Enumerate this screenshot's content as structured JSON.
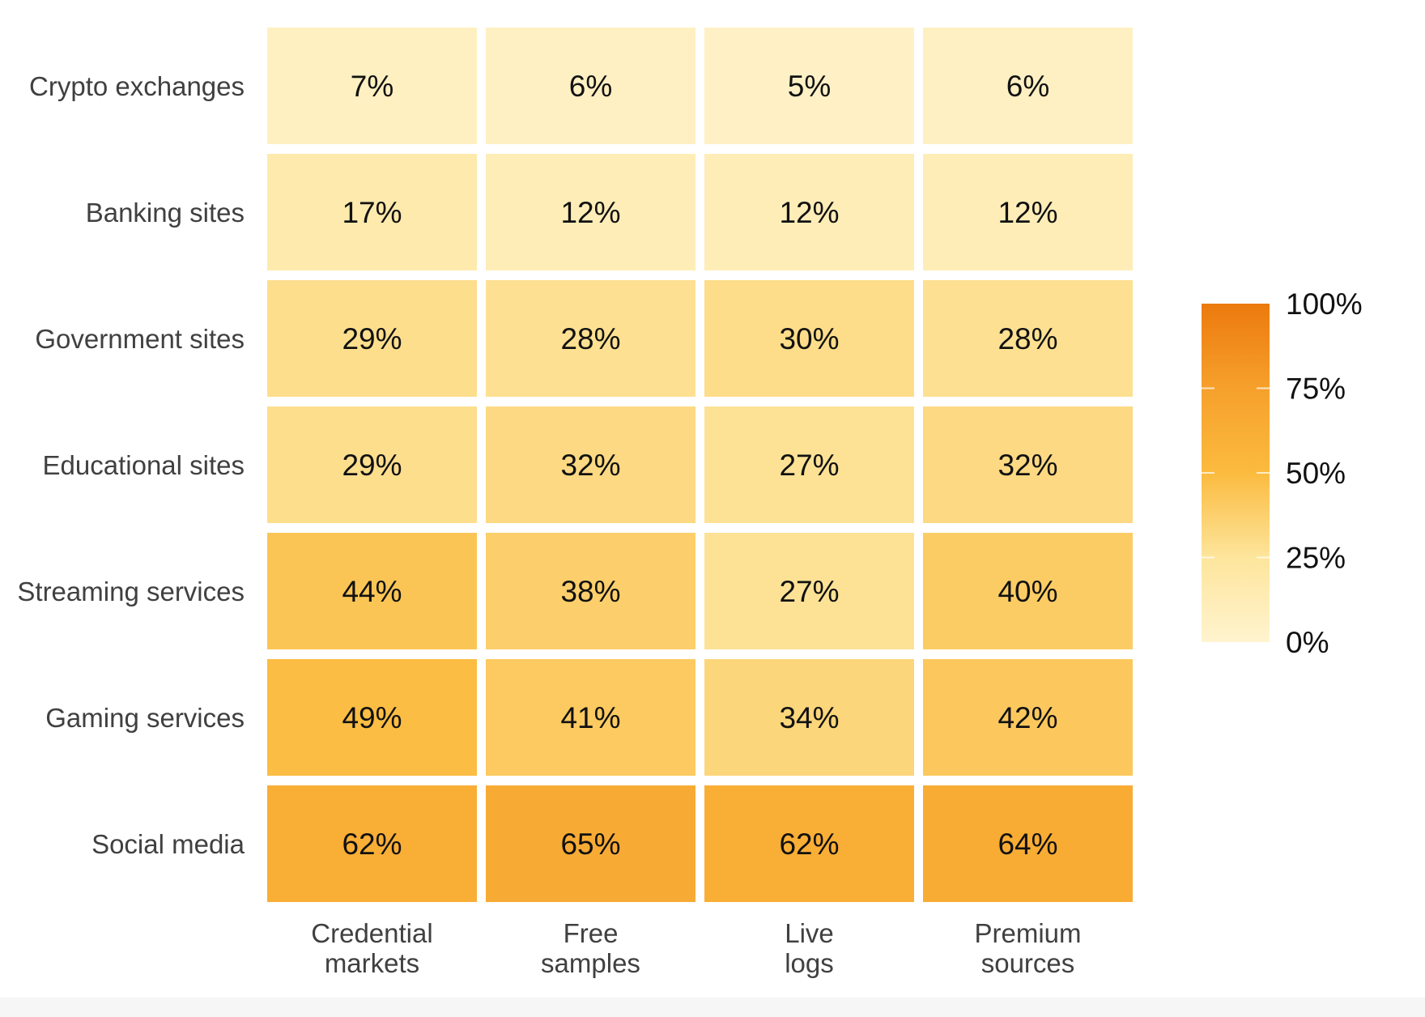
{
  "chart_data": {
    "type": "heatmap",
    "title": "",
    "xlabel": "",
    "ylabel": "",
    "rows": [
      "Crypto exchanges",
      "Banking sites",
      "Government sites",
      "Educational sites",
      "Streaming services",
      "Gaming services",
      "Social media"
    ],
    "columns": [
      [
        "Credential",
        "markets"
      ],
      [
        "Free",
        "samples"
      ],
      [
        "Live",
        "logs"
      ],
      [
        "Premium",
        "sources"
      ]
    ],
    "values": [
      [
        7,
        6,
        5,
        6
      ],
      [
        17,
        12,
        12,
        12
      ],
      [
        29,
        28,
        30,
        28
      ],
      [
        29,
        32,
        27,
        32
      ],
      [
        44,
        38,
        27,
        40
      ],
      [
        49,
        41,
        34,
        42
      ],
      [
        62,
        65,
        62,
        64
      ]
    ],
    "value_suffix": "%",
    "colorbar": {
      "min": 0,
      "max": 100,
      "ticks": [
        100,
        75,
        50,
        25,
        0
      ],
      "tick_labels": [
        "100%",
        "75%",
        "50%",
        "25%",
        "0%"
      ],
      "colors": [
        "#fff4cf",
        "#fde59c",
        "#fbbb3f",
        "#f6a02c",
        "#ec7a0d"
      ]
    },
    "legend_position": "right",
    "grid": false
  }
}
